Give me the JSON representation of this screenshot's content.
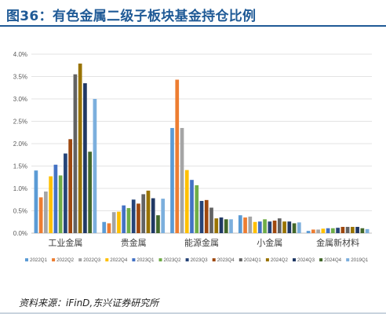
{
  "figure": {
    "title": "图36：有色金属二级子板块基金持仓比例",
    "source": "资料来源：iFinD,东兴证券研究所"
  },
  "chart_data": {
    "type": "bar",
    "categories": [
      "工业金属",
      "贵金属",
      "能源金属",
      "小金属",
      "金属新材料"
    ],
    "ylim": [
      0,
      4.0
    ],
    "yticks": [
      0,
      0.5,
      1.0,
      1.5,
      2.0,
      2.5,
      3.0,
      3.5,
      4.0
    ],
    "ytick_labels": [
      "0.0%",
      "0.5%",
      "1.0%",
      "1.5%",
      "2.0%",
      "2.5%",
      "3.0%",
      "3.5%",
      "4.0%"
    ],
    "grid": true,
    "legend_position": "bottom",
    "xlabel": "",
    "ylabel": "",
    "unit": "%",
    "series": [
      {
        "name": "2022Q1",
        "color": "#5b9bd5",
        "values": [
          1.4,
          0.25,
          2.35,
          0.4,
          0.05
        ]
      },
      {
        "name": "2022Q2",
        "color": "#ed7d31",
        "values": [
          0.8,
          0.22,
          3.43,
          0.35,
          0.08
        ]
      },
      {
        "name": "2022Q3",
        "color": "#a5a5a5",
        "values": [
          0.93,
          0.47,
          2.35,
          0.37,
          0.08
        ]
      },
      {
        "name": "2022Q4",
        "color": "#ffc000",
        "values": [
          1.27,
          0.48,
          1.41,
          0.25,
          0.1
        ]
      },
      {
        "name": "2023Q1",
        "color": "#4472c4",
        "values": [
          1.53,
          0.62,
          1.19,
          0.26,
          0.11
        ]
      },
      {
        "name": "2023Q2",
        "color": "#70ad47",
        "values": [
          1.29,
          0.56,
          1.07,
          0.31,
          0.11
        ]
      },
      {
        "name": "2023Q3",
        "color": "#264478",
        "values": [
          1.78,
          0.75,
          0.72,
          0.26,
          0.12
        ]
      },
      {
        "name": "2023Q4",
        "color": "#9e480e",
        "values": [
          2.1,
          0.66,
          0.74,
          0.28,
          0.14
        ]
      },
      {
        "name": "2024Q1",
        "color": "#636363",
        "values": [
          3.55,
          0.87,
          0.57,
          0.33,
          0.14
        ]
      },
      {
        "name": "2024Q2",
        "color": "#997300",
        "values": [
          3.79,
          0.95,
          0.33,
          0.26,
          0.14
        ]
      },
      {
        "name": "2024Q3",
        "color": "#203864",
        "values": [
          3.35,
          0.78,
          0.35,
          0.26,
          0.14
        ]
      },
      {
        "name": "2024Q4",
        "color": "#43682b",
        "values": [
          1.82,
          0.4,
          0.31,
          0.22,
          0.11
        ]
      },
      {
        "name": "2019Q1",
        "color": "#7cafdd",
        "values": [
          3.0,
          0.77,
          0.31,
          0.24,
          0.09
        ]
      }
    ]
  }
}
